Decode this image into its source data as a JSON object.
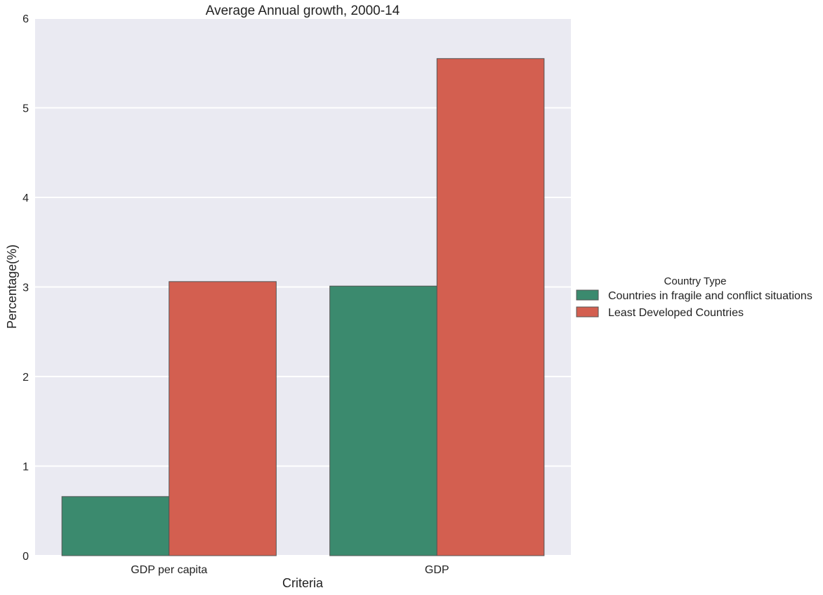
{
  "chart_data": {
    "type": "bar",
    "title": "Average Annual growth, 2000-14",
    "xlabel": "Criteria",
    "ylabel": "Percentage(%)",
    "categories": [
      "GDP per capita",
      "GDP"
    ],
    "ylim": [
      0,
      6
    ],
    "yticks": [
      "0",
      "1",
      "2",
      "3",
      "4",
      "5",
      "6"
    ],
    "grid": true,
    "legend": {
      "title": "Country Type",
      "placement": "outside-right"
    },
    "series": [
      {
        "name": "Countries in fragile and conflict situations",
        "color": "#3b8a6e",
        "values": [
          0.66,
          3.01
        ]
      },
      {
        "name": "Least Developed Countries",
        "color": "#d35f50",
        "values": [
          3.06,
          5.55
        ]
      }
    ]
  }
}
